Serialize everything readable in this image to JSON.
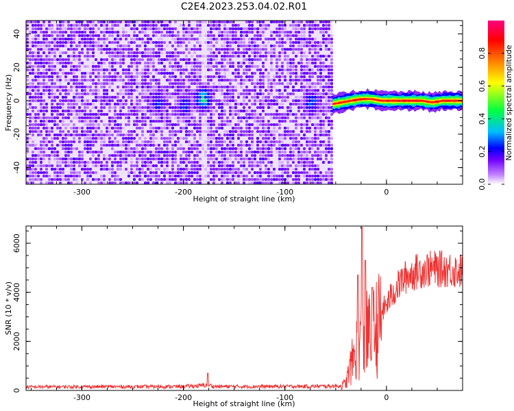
{
  "title": "C2E4.2023.253.04.02.R01",
  "chart_data": [
    {
      "type": "heatmap",
      "xlabel": "Height of straight line (km)",
      "ylabel": "Frequency (Hz)",
      "xlim": [
        -355,
        75
      ],
      "ylim": [
        -50,
        48
      ],
      "x_ticks": [
        -300,
        -200,
        -100,
        0
      ],
      "x_tick_labels": [
        "-300",
        "-200",
        "-100",
        "0"
      ],
      "y_ticks": [
        -40,
        -20,
        0,
        20,
        40
      ],
      "y_tick_labels": [
        "-40",
        "-20",
        "0",
        "20",
        "40"
      ],
      "noise_region_x": [
        -355,
        -53
      ],
      "blank_region_x": [
        -53,
        75
      ],
      "gap_x": -180,
      "blobs": [
        {
          "x": -226,
          "y": 0,
          "amp": 0.3
        },
        {
          "x": -200,
          "y": -2,
          "amp": 0.28
        },
        {
          "x": -182,
          "y": 2,
          "amp": 0.45
        },
        {
          "x": -75,
          "y": 0,
          "amp": 0.32
        }
      ],
      "signal_band": {
        "x_start": -53,
        "x_end": 75,
        "center_hz": 0,
        "halfwidth_hz": 4
      },
      "signal_line": [
        [
          -53,
          -2
        ],
        [
          -35,
          0
        ],
        [
          -25,
          1
        ],
        [
          -15,
          1
        ],
        [
          -5,
          0
        ],
        [
          5,
          0
        ],
        [
          15,
          0
        ],
        [
          25,
          0
        ],
        [
          35,
          0
        ],
        [
          45,
          -1
        ],
        [
          55,
          0
        ],
        [
          75,
          0
        ]
      ],
      "colorbar": {
        "label": "Normalized spectral amplitude",
        "range": [
          0,
          1
        ],
        "ticks": [
          0.0,
          0.2,
          0.4,
          0.6,
          0.8
        ],
        "tick_labels": [
          "0.0",
          "0.2",
          "0.4",
          "0.6",
          "0.8"
        ],
        "colors": [
          "#ffffff",
          "#8000ff",
          "#0000ff",
          "#00c0ff",
          "#00ff00",
          "#ffff00",
          "#ff8000",
          "#ff0000",
          "#ff00a0"
        ]
      }
    },
    {
      "type": "line",
      "xlabel": "Height of straight line (km)",
      "ylabel": "SNR (10 * v/v)",
      "xlim": [
        -355,
        75
      ],
      "ylim": [
        0,
        6700
      ],
      "x_ticks": [
        -300,
        -200,
        -100,
        0
      ],
      "x_tick_labels": [
        "-300",
        "-200",
        "-100",
        "0"
      ],
      "y_ticks": [
        0,
        2000,
        4000,
        6000
      ],
      "y_tick_labels": [
        "0",
        "2000",
        "4000",
        "6000"
      ],
      "color": "#ee3333",
      "envelope": [
        [
          -355,
          150
        ],
        [
          -300,
          160
        ],
        [
          -250,
          160
        ],
        [
          -200,
          170
        ],
        [
          -185,
          200
        ],
        [
          -175,
          230
        ],
        [
          -170,
          170
        ],
        [
          -150,
          170
        ],
        [
          -100,
          170
        ],
        [
          -60,
          180
        ],
        [
          -45,
          200
        ],
        [
          -40,
          350
        ],
        [
          -35,
          1200
        ],
        [
          -32,
          1600
        ],
        [
          -28,
          2200
        ],
        [
          -25,
          2600
        ],
        [
          -22,
          2500
        ],
        [
          -18,
          2700
        ],
        [
          -15,
          2500
        ],
        [
          -10,
          3000
        ],
        [
          -5,
          3300
        ],
        [
          0,
          3600
        ],
        [
          5,
          4000
        ],
        [
          10,
          4300
        ],
        [
          15,
          4600
        ],
        [
          20,
          4800
        ],
        [
          30,
          5000
        ],
        [
          40,
          5100
        ],
        [
          50,
          5100
        ],
        [
          60,
          5100
        ],
        [
          75,
          5000
        ]
      ],
      "spikes": [
        {
          "x": -176,
          "y": 700
        },
        {
          "x": -24,
          "y": 6650
        },
        {
          "x": -21,
          "y": 5300
        },
        {
          "x": -28,
          "y": 4700
        },
        {
          "x": -14,
          "y": 4200
        }
      ]
    }
  ]
}
